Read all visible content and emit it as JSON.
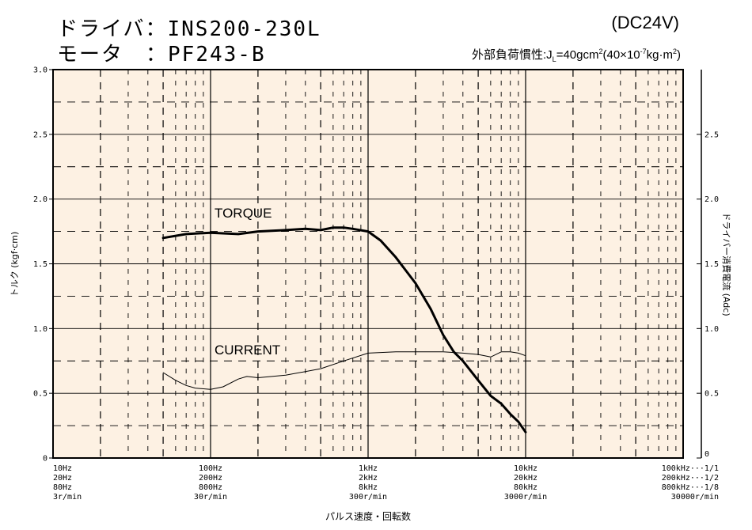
{
  "header": {
    "driver_label": "ドライバ",
    "driver_value": "INS200-230L",
    "motor_label": "モータ",
    "motor_value": "PF243-B",
    "voltage": "(DC24V)",
    "inertia_label": "外部負荷慣性:",
    "inertia_value": "40gcm",
    "inertia_paren": "(40×10",
    "inertia_exp": "-7",
    "inertia_unit": "kg·m",
    "inertia_sq": "2",
    "inertia_close": ")"
  },
  "chart_data": {
    "type": "line",
    "x_scale": "log",
    "x_range_hz": [
      10,
      100000
    ],
    "y_left": {
      "label": "トルク (kgf·cm)",
      "range": [
        0,
        3.0
      ],
      "ticks": [
        "0",
        "0.5",
        "1.0",
        "1.5",
        "2.0",
        "2.5",
        "3.0"
      ]
    },
    "y_right": {
      "label": "ドライバー消費電流 (Adc)",
      "ticks": [
        "0",
        "0.5",
        "1.0",
        "1.5",
        "2.0",
        "2.5"
      ]
    },
    "x_title": "パルス速度・回転数",
    "x_tick_labels": [
      {
        "x": 10,
        "lines": [
          "10Hz",
          "20Hz",
          "80Hz",
          "3r/min"
        ],
        "align": "start"
      },
      {
        "x": 100,
        "lines": [
          "100Hz",
          "200Hz",
          "800Hz",
          "30r/min"
        ],
        "align": "middle"
      },
      {
        "x": 1000,
        "lines": [
          "1kHz",
          "2kHz",
          "8kHz",
          "300r/min"
        ],
        "align": "middle"
      },
      {
        "x": 10000,
        "lines": [
          "10kHz",
          "20kHz",
          "80kHz",
          "3000r/min"
        ],
        "align": "middle"
      },
      {
        "x": 100000,
        "lines": [
          "100kHz···1/1",
          "200kHz···1/2",
          "800kHz···1/8",
          "30000r/min"
        ],
        "align": "end"
      }
    ],
    "series": [
      {
        "name": "TORQUE",
        "points": [
          [
            50,
            1.7
          ],
          [
            70,
            1.73
          ],
          [
            100,
            1.74
          ],
          [
            150,
            1.73
          ],
          [
            200,
            1.75
          ],
          [
            300,
            1.76
          ],
          [
            400,
            1.77
          ],
          [
            500,
            1.76
          ],
          [
            600,
            1.78
          ],
          [
            700,
            1.78
          ],
          [
            800,
            1.77
          ],
          [
            1000,
            1.75
          ],
          [
            1200,
            1.68
          ],
          [
            1500,
            1.55
          ],
          [
            2000,
            1.35
          ],
          [
            2500,
            1.15
          ],
          [
            3000,
            0.95
          ],
          [
            3500,
            0.82
          ],
          [
            4000,
            0.75
          ],
          [
            5000,
            0.6
          ],
          [
            6000,
            0.48
          ],
          [
            7000,
            0.42
          ],
          [
            8000,
            0.34
          ],
          [
            9000,
            0.28
          ],
          [
            10000,
            0.2
          ]
        ]
      },
      {
        "name": "CURRENT",
        "points": [
          [
            50,
            0.66
          ],
          [
            60,
            0.6
          ],
          [
            70,
            0.56
          ],
          [
            80,
            0.54
          ],
          [
            100,
            0.53
          ],
          [
            120,
            0.55
          ],
          [
            150,
            0.61
          ],
          [
            170,
            0.63
          ],
          [
            200,
            0.62
          ],
          [
            300,
            0.64
          ],
          [
            500,
            0.69
          ],
          [
            700,
            0.75
          ],
          [
            1000,
            0.81
          ],
          [
            1500,
            0.82
          ],
          [
            2000,
            0.82
          ],
          [
            3000,
            0.82
          ],
          [
            4000,
            0.81
          ],
          [
            5000,
            0.8
          ],
          [
            6000,
            0.78
          ],
          [
            7000,
            0.82
          ],
          [
            8000,
            0.82
          ],
          [
            9000,
            0.81
          ],
          [
            10000,
            0.79
          ]
        ]
      }
    ],
    "grid": true,
    "colors": {
      "plot_bg": "#fdf1e3",
      "line": "#000000"
    }
  }
}
